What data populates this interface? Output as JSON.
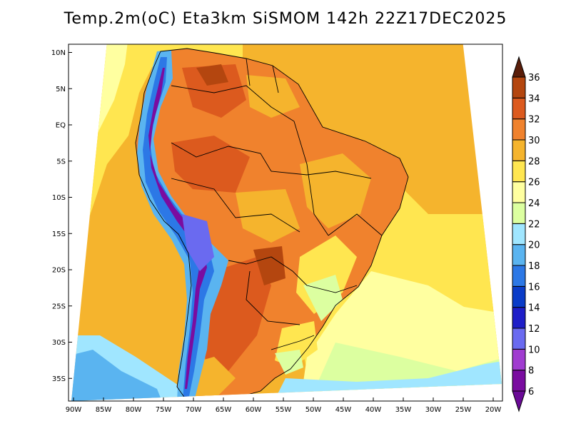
{
  "title": "Temp.2m(oC) Eta3km SiSMOM 142h 22Z17DEC2025",
  "map": {
    "variable": "2m temperature",
    "units": "oC",
    "lat_range": [
      -38,
      12
    ],
    "lon_range": [
      -91,
      -20
    ],
    "lat_ticks": [
      {
        "lat": 10,
        "label": "10N"
      },
      {
        "lat": 5,
        "label": "5N"
      },
      {
        "lat": 0,
        "label": "EQ"
      },
      {
        "lat": -5,
        "label": "5S"
      },
      {
        "lat": -10,
        "label": "10S"
      },
      {
        "lat": -15,
        "label": "15S"
      },
      {
        "lat": -20,
        "label": "20S"
      },
      {
        "lat": -25,
        "label": "25S"
      },
      {
        "lat": -30,
        "label": "30S"
      },
      {
        "lat": -35,
        "label": "35S"
      }
    ],
    "lon_ticks": [
      {
        "lon": -90,
        "label": "90W"
      },
      {
        "lon": -85,
        "label": "85W"
      },
      {
        "lon": -80,
        "label": "80W"
      },
      {
        "lon": -75,
        "label": "75W"
      },
      {
        "lon": -70,
        "label": "70W"
      },
      {
        "lon": -65,
        "label": "65W"
      },
      {
        "lon": -60,
        "label": "60W"
      },
      {
        "lon": -55,
        "label": "55W"
      },
      {
        "lon": -50,
        "label": "50W"
      },
      {
        "lon": -45,
        "label": "45W"
      },
      {
        "lon": -40,
        "label": "40W"
      },
      {
        "lon": -35,
        "label": "35W"
      },
      {
        "lon": -30,
        "label": "30W"
      },
      {
        "lon": -25,
        "label": "25W"
      },
      {
        "lon": -20,
        "label": "20W"
      }
    ]
  },
  "colorbar": {
    "levels": [
      {
        "value": "6",
        "color": "#7a0ca0"
      },
      {
        "value": "8",
        "color": "#a03cd0"
      },
      {
        "value": "10",
        "color": "#6a6af0"
      },
      {
        "value": "12",
        "color": "#1e1ec8"
      },
      {
        "value": "14",
        "color": "#0a3cc8"
      },
      {
        "value": "16",
        "color": "#2c78e6"
      },
      {
        "value": "18",
        "color": "#5ab4f0"
      },
      {
        "value": "20",
        "color": "#a0e6ff"
      },
      {
        "value": "22",
        "color": "#dcffa0"
      },
      {
        "value": "24",
        "color": "#ffffa0"
      },
      {
        "value": "26",
        "color": "#ffe650"
      },
      {
        "value": "28",
        "color": "#f5b42d"
      },
      {
        "value": "30",
        "color": "#f0822d"
      },
      {
        "value": "32",
        "color": "#dc5a1e"
      },
      {
        "value": "34",
        "color": "#b4460f"
      },
      {
        "value": "36",
        "color": "#7a2a0a"
      }
    ],
    "under_color": "#6a0a96",
    "over_color": "#5a1e0a"
  },
  "colors": {
    "ocean_warm": "#f5b42d",
    "ocean_mild": "#ffe650",
    "ocean_cool": "#ffffa0",
    "ocean_cold": "#a0e6ff",
    "land_hot": "#f0822d",
    "land_very_hot": "#dc5a1e",
    "andes_cold": "#2c78e6",
    "andes_very_cold": "#7a0ca0"
  }
}
